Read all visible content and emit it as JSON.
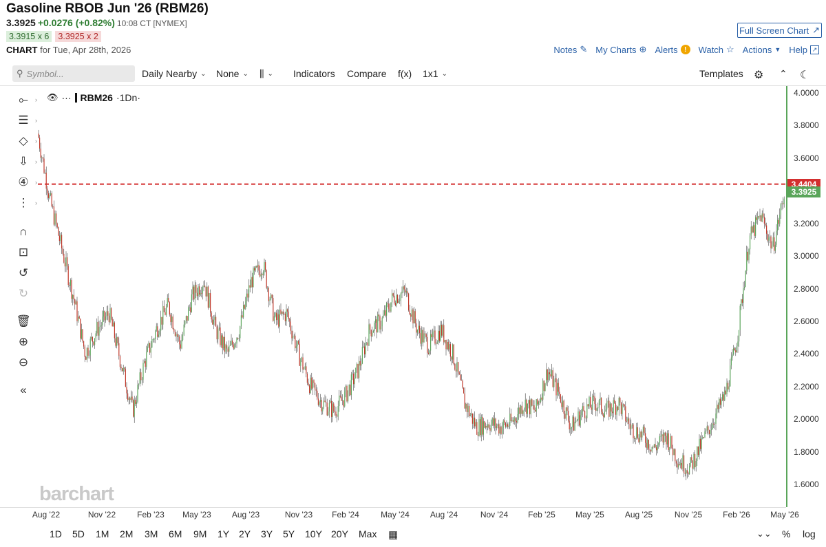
{
  "header": {
    "title": "Gasoline RBOB Jun '26 (RBM26)",
    "last": "3.3925",
    "change": "+0.0276 (+0.82%)",
    "time": "10:08 CT [NYMEX]",
    "bid": "3.3915 x 6",
    "ask": "3.3925 x 2",
    "chart_prefix": "CHART",
    "chart_date": "for Tue, Apr 28th, 2026"
  },
  "actions": {
    "fullscreen": "Full Screen Chart",
    "notes": "Notes",
    "mycharts": "My Charts",
    "alerts": "Alerts",
    "watch": "Watch",
    "actions": "Actions",
    "help": "Help"
  },
  "toolbar": {
    "search_placeholder": "Symbol...",
    "daily": "Daily Nearby",
    "none": "None",
    "indicators": "Indicators",
    "compare": "Compare",
    "fx": "f(x)",
    "layout": "1x1",
    "templates": "Templates"
  },
  "legend": {
    "symbol": "RBM26",
    "interval": "·1Dn·"
  },
  "watermark": "barchart",
  "colors": {
    "up": "#5aa55a",
    "down": "#c0392b",
    "accent": "#2c62a8",
    "alert_line": "#d32f2f"
  },
  "yaxis": {
    "ticks": [
      "4.0000",
      "3.8000",
      "3.6000",
      "3.4000",
      "3.2000",
      "3.0000",
      "2.8000",
      "2.6000",
      "2.4000",
      "2.2000",
      "2.0000",
      "1.8000",
      "1.6000"
    ],
    "alert_tag": "3.4404",
    "price_tag": "3.3925"
  },
  "xaxis": {
    "ticks": [
      "Aug '22",
      "Nov '22",
      "Feb '23",
      "May '23",
      "Aug '23",
      "Nov '23",
      "Feb '24",
      "May '24",
      "Aug '24",
      "Nov '24",
      "Feb '25",
      "May '25",
      "Aug '25",
      "Nov '25",
      "Feb '26",
      "May '26"
    ]
  },
  "periods": [
    "1D",
    "5D",
    "1M",
    "2M",
    "3M",
    "6M",
    "9M",
    "1Y",
    "2Y",
    "3Y",
    "5Y",
    "10Y",
    "20Y",
    "Max"
  ],
  "bottom_right": {
    "pct": "%",
    "log": "log"
  },
  "chart_data": {
    "type": "line",
    "title": "Gasoline RBOB Jun '26 (RBM26)",
    "ylim": [
      1.5,
      4.1
    ],
    "series": [
      {
        "name": "RBM26",
        "points": [
          [
            "Aug '22",
            3.75
          ],
          [
            "Aug '22",
            3.35
          ],
          [
            "Sep '22",
            3.05
          ],
          [
            "Oct '22",
            2.75
          ],
          [
            "Oct '22",
            2.4
          ],
          [
            "Nov '22",
            2.55
          ],
          [
            "Nov '22",
            2.65
          ],
          [
            "Dec '22",
            2.35
          ],
          [
            "Dec '22",
            2.05
          ],
          [
            "Jan '23",
            2.35
          ],
          [
            "Feb '23",
            2.55
          ],
          [
            "Feb '23",
            2.7
          ],
          [
            "Mar '23",
            2.45
          ],
          [
            "Apr '23",
            2.75
          ],
          [
            "May '23",
            2.85
          ],
          [
            "May '23",
            2.55
          ],
          [
            "Jun '23",
            2.4
          ],
          [
            "Jul '23",
            2.55
          ],
          [
            "Aug '23",
            2.85
          ],
          [
            "Aug '23",
            2.95
          ],
          [
            "Sep '23",
            2.6
          ],
          [
            "Oct '23",
            2.65
          ],
          [
            "Oct '23",
            2.4
          ],
          [
            "Nov '23",
            2.2
          ],
          [
            "Dec '23",
            2.1
          ],
          [
            "Dec '23",
            2.05
          ],
          [
            "Jan '24",
            2.15
          ],
          [
            "Feb '24",
            2.3
          ],
          [
            "Feb '24",
            2.55
          ],
          [
            "Mar '24",
            2.6
          ],
          [
            "Apr '24",
            2.75
          ],
          [
            "Apr '24",
            2.78
          ],
          [
            "May '24",
            2.55
          ],
          [
            "Jun '24",
            2.45
          ],
          [
            "Jul '24",
            2.55
          ],
          [
            "Jul '24",
            2.4
          ],
          [
            "Aug '24",
            2.1
          ],
          [
            "Sep '24",
            1.95
          ],
          [
            "Oct '24",
            1.98
          ],
          [
            "Nov '24",
            1.95
          ],
          [
            "Dec '24",
            1.98
          ],
          [
            "Jan '25",
            2.1
          ],
          [
            "Feb '25",
            2.05
          ],
          [
            "Feb '25",
            2.3
          ],
          [
            "Mar '25",
            2.15
          ],
          [
            "Apr '25",
            1.95
          ],
          [
            "May '25",
            2.05
          ],
          [
            "Jun '25",
            2.1
          ],
          [
            "Jul '25",
            2.05
          ],
          [
            "Aug '25",
            2.1
          ],
          [
            "Aug '25",
            1.95
          ],
          [
            "Sep '25",
            1.9
          ],
          [
            "Oct '25",
            1.82
          ],
          [
            "Nov '25",
            1.9
          ],
          [
            "Dec '25",
            1.75
          ],
          [
            "Jan '26",
            1.7
          ],
          [
            "Jan '26",
            1.85
          ],
          [
            "Feb '26",
            2.0
          ],
          [
            "Feb '26",
            2.15
          ],
          [
            "Mar '26",
            2.5
          ],
          [
            "Mar '26",
            3.1
          ],
          [
            "Apr '26",
            3.25
          ],
          [
            "Apr '26",
            3.05
          ],
          [
            "Apr '26",
            3.3925
          ]
        ]
      }
    ],
    "alert_level": 3.4404,
    "last_price": 3.3925
  }
}
